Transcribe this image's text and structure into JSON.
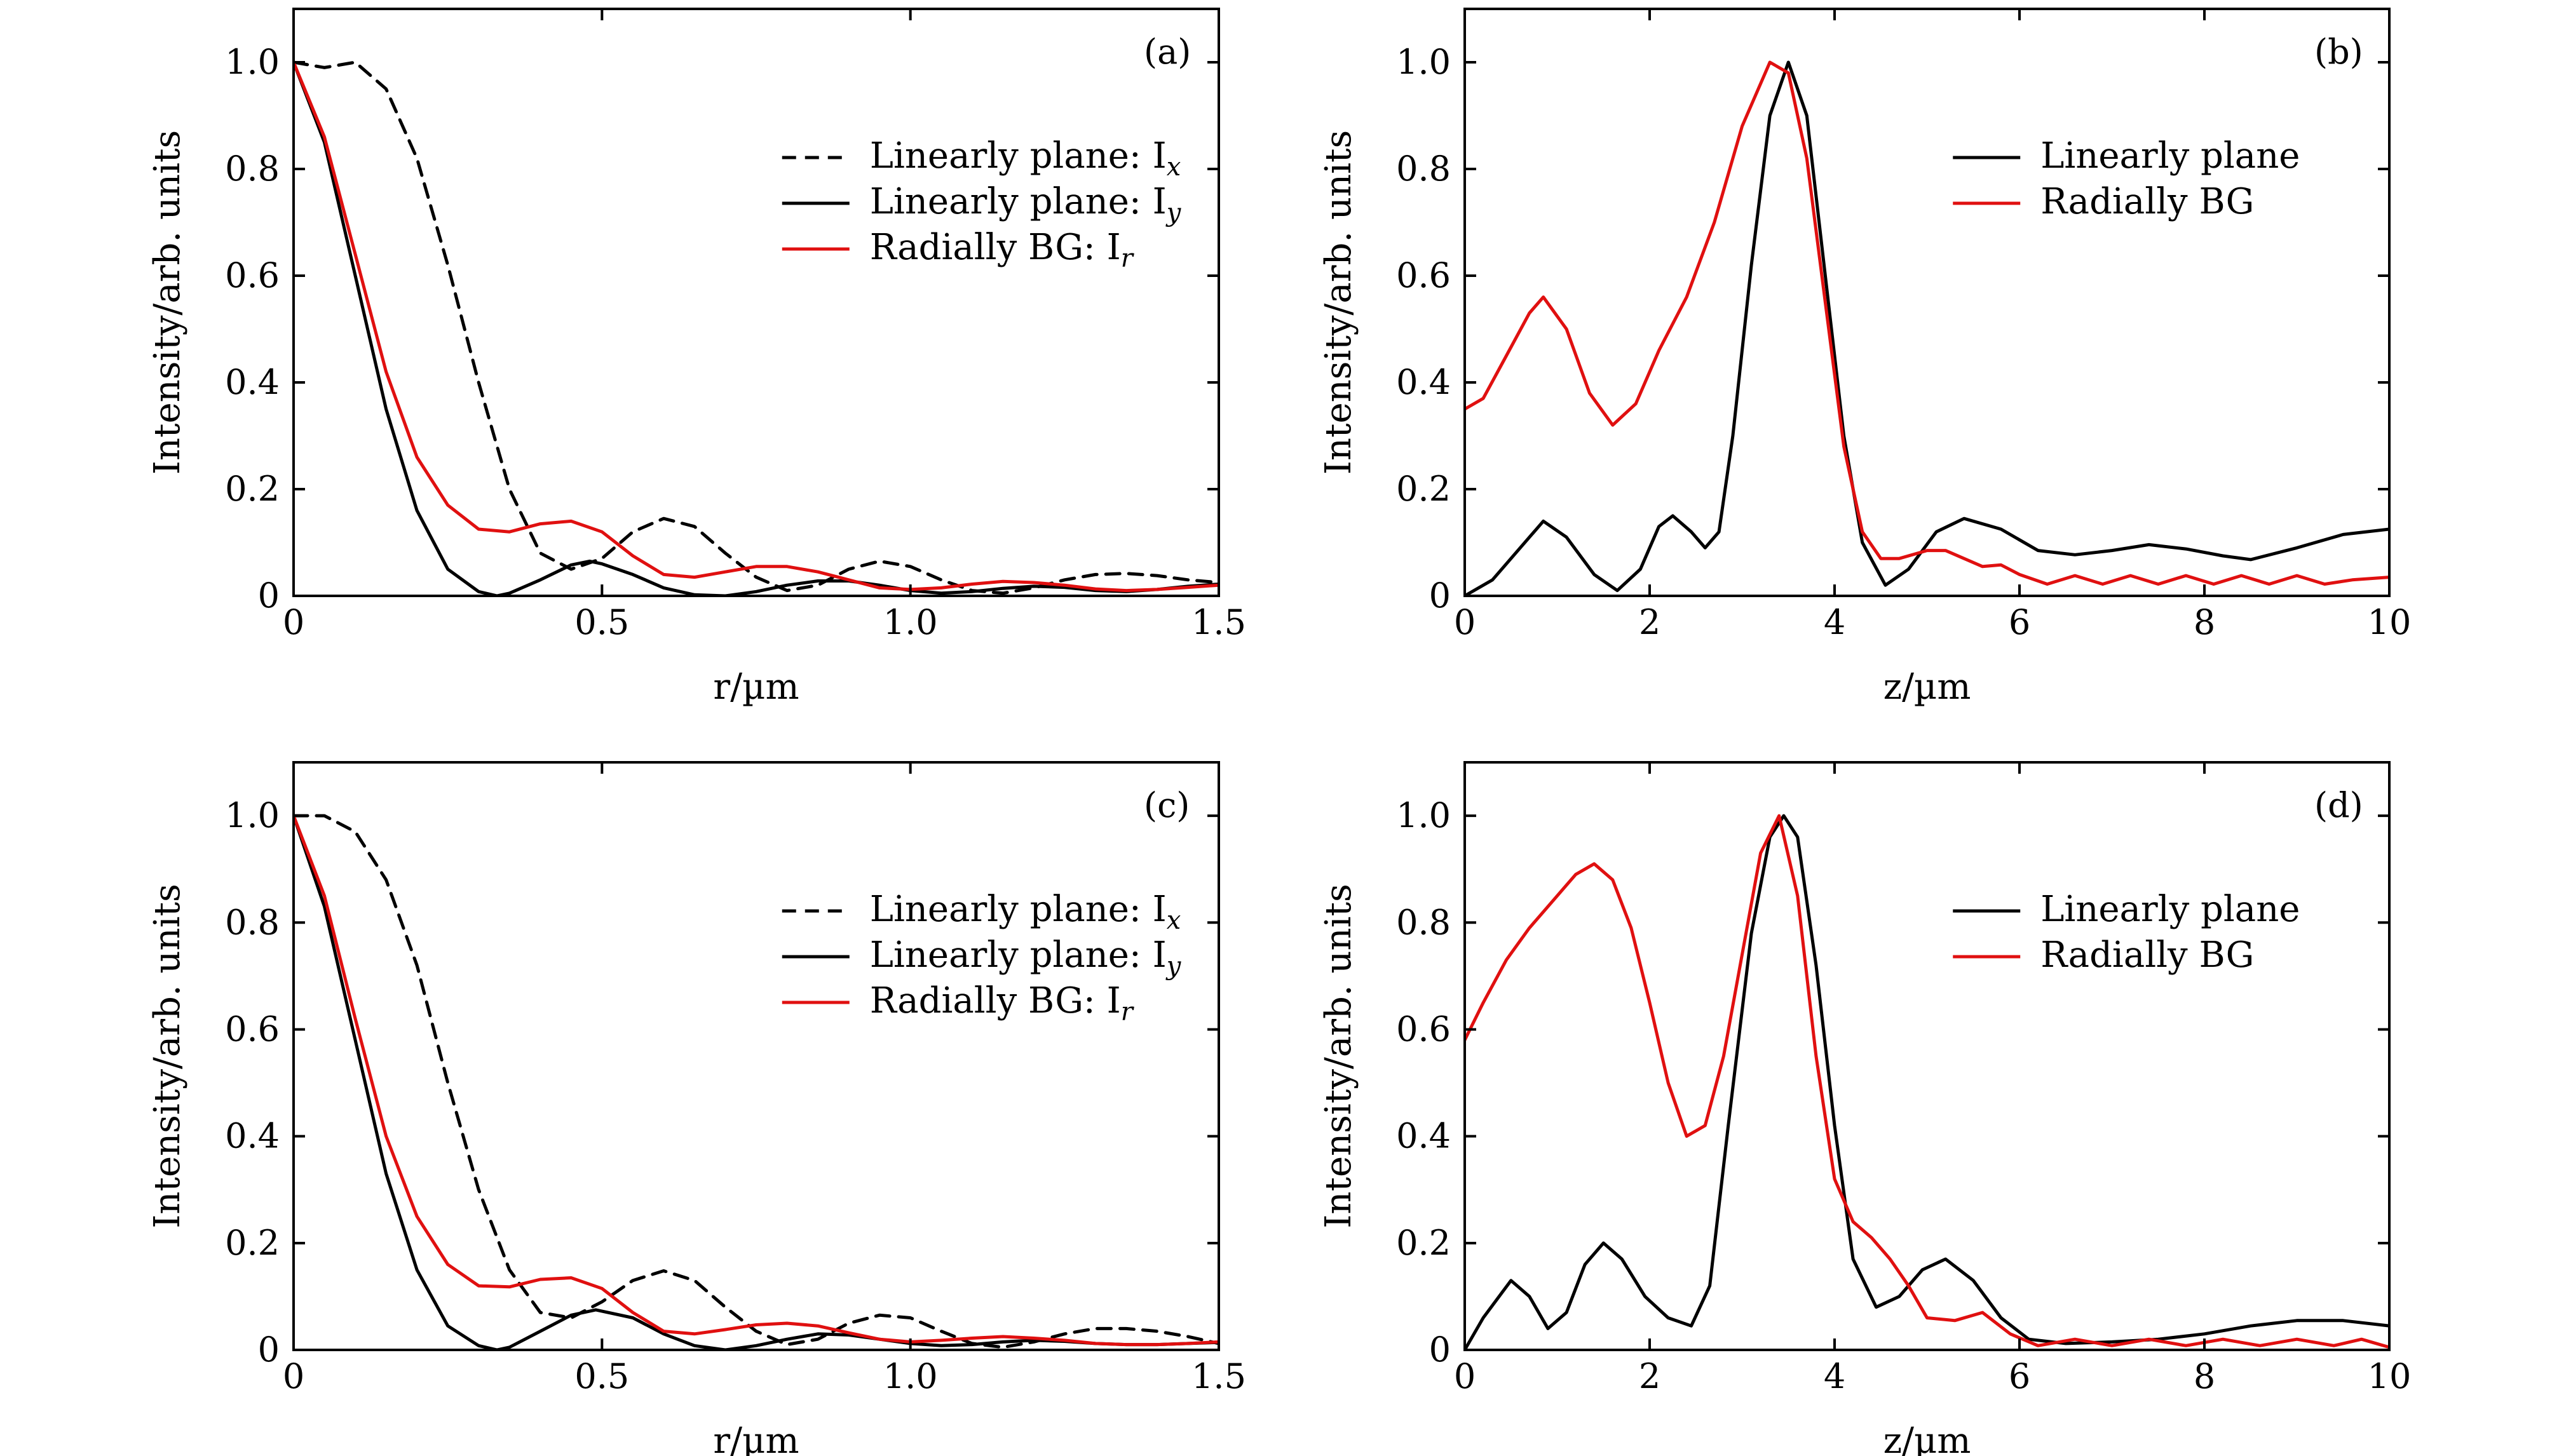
{
  "colors": {
    "black": "#000000",
    "red": "#e01010"
  },
  "chart_data": [
    {
      "type": "line",
      "panel_label": "(a)",
      "xlabel": "r/µm",
      "ylabel": "Intensity/arb. units",
      "xlim": [
        0,
        1.5
      ],
      "ylim": [
        0,
        1.1
      ],
      "xticks": [
        0,
        0.5,
        1.0,
        1.5
      ],
      "xtick_labels": [
        "0",
        "0.5",
        "1.0",
        "1.5"
      ],
      "yticks": [
        0,
        0.2,
        0.4,
        0.6,
        0.8,
        1.0
      ],
      "ytick_labels": [
        "0",
        "0.2",
        "0.4",
        "0.6",
        "0.8",
        "1.0"
      ],
      "grid": false,
      "legend_position": "upper-right",
      "series": [
        {
          "name": "Linearly plane: I",
          "subscript": "x",
          "color": "#000000",
          "dash": "dashed",
          "x": [
            0,
            0.05,
            0.1,
            0.15,
            0.2,
            0.25,
            0.3,
            0.35,
            0.4,
            0.45,
            0.5,
            0.55,
            0.6,
            0.65,
            0.7,
            0.75,
            0.8,
            0.85,
            0.9,
            0.95,
            1.0,
            1.05,
            1.1,
            1.15,
            1.2,
            1.25,
            1.3,
            1.35,
            1.4,
            1.45,
            1.5
          ],
          "y": [
            1.0,
            0.99,
            1.0,
            0.95,
            0.82,
            0.62,
            0.4,
            0.2,
            0.08,
            0.05,
            0.07,
            0.12,
            0.145,
            0.13,
            0.08,
            0.035,
            0.01,
            0.02,
            0.05,
            0.065,
            0.055,
            0.03,
            0.01,
            0.005,
            0.015,
            0.03,
            0.04,
            0.042,
            0.038,
            0.03,
            0.025
          ]
        },
        {
          "name": "Linearly plane: I",
          "subscript": "y",
          "color": "#000000",
          "dash": "solid",
          "x": [
            0,
            0.05,
            0.1,
            0.15,
            0.2,
            0.25,
            0.3,
            0.33,
            0.35,
            0.4,
            0.45,
            0.48,
            0.5,
            0.55,
            0.6,
            0.65,
            0.7,
            0.75,
            0.8,
            0.85,
            0.9,
            0.95,
            1.0,
            1.05,
            1.1,
            1.15,
            1.2,
            1.25,
            1.3,
            1.35,
            1.4,
            1.45,
            1.5
          ],
          "y": [
            1.0,
            0.85,
            0.6,
            0.35,
            0.16,
            0.05,
            0.008,
            0.0,
            0.005,
            0.03,
            0.058,
            0.065,
            0.06,
            0.04,
            0.015,
            0.002,
            0.0,
            0.008,
            0.02,
            0.028,
            0.028,
            0.02,
            0.01,
            0.005,
            0.008,
            0.014,
            0.018,
            0.016,
            0.01,
            0.008,
            0.012,
            0.018,
            0.022
          ]
        },
        {
          "name": "Radially BG: I",
          "subscript": "r",
          "color": "#e01010",
          "dash": "solid",
          "x": [
            0,
            0.05,
            0.1,
            0.15,
            0.2,
            0.25,
            0.3,
            0.35,
            0.4,
            0.45,
            0.5,
            0.55,
            0.6,
            0.65,
            0.7,
            0.75,
            0.8,
            0.85,
            0.9,
            0.95,
            1.0,
            1.05,
            1.1,
            1.15,
            1.2,
            1.25,
            1.3,
            1.35,
            1.4,
            1.45,
            1.5
          ],
          "y": [
            1.0,
            0.86,
            0.64,
            0.42,
            0.26,
            0.17,
            0.125,
            0.12,
            0.135,
            0.14,
            0.12,
            0.075,
            0.04,
            0.035,
            0.045,
            0.055,
            0.055,
            0.045,
            0.03,
            0.015,
            0.012,
            0.015,
            0.022,
            0.027,
            0.025,
            0.02,
            0.013,
            0.01,
            0.012,
            0.016,
            0.02
          ]
        }
      ]
    },
    {
      "type": "line",
      "panel_label": "(b)",
      "xlabel": "z/µm",
      "ylabel": "Intensity/arb. units",
      "xlim": [
        0,
        10
      ],
      "ylim": [
        0,
        1.1
      ],
      "xticks": [
        0,
        2,
        4,
        6,
        8,
        10
      ],
      "xtick_labels": [
        "0",
        "2",
        "4",
        "6",
        "8",
        "10"
      ],
      "yticks": [
        0,
        0.2,
        0.4,
        0.6,
        0.8,
        1.0
      ],
      "ytick_labels": [
        "0",
        "0.2",
        "0.4",
        "0.6",
        "0.8",
        "1.0"
      ],
      "grid": false,
      "legend_position": "upper-right",
      "series": [
        {
          "name": "Linearly plane",
          "subscript": "",
          "color": "#000000",
          "dash": "solid",
          "x": [
            0,
            0.3,
            0.6,
            0.85,
            1.1,
            1.4,
            1.65,
            1.9,
            2.1,
            2.25,
            2.45,
            2.6,
            2.75,
            2.9,
            3.1,
            3.3,
            3.5,
            3.7,
            3.9,
            4.1,
            4.3,
            4.55,
            4.8,
            5.1,
            5.4,
            5.8,
            6.2,
            6.6,
            7.0,
            7.4,
            7.8,
            8.2,
            8.5,
            9.0,
            9.5,
            10.0
          ],
          "y": [
            0.0,
            0.03,
            0.09,
            0.14,
            0.11,
            0.04,
            0.01,
            0.05,
            0.13,
            0.15,
            0.12,
            0.09,
            0.12,
            0.3,
            0.62,
            0.9,
            1.0,
            0.9,
            0.6,
            0.3,
            0.1,
            0.02,
            0.05,
            0.12,
            0.145,
            0.125,
            0.085,
            0.077,
            0.085,
            0.096,
            0.088,
            0.075,
            0.068,
            0.09,
            0.115,
            0.125
          ]
        },
        {
          "name": "Radially BG",
          "subscript": "",
          "color": "#e01010",
          "dash": "solid",
          "x": [
            0,
            0.2,
            0.45,
            0.7,
            0.85,
            1.1,
            1.35,
            1.6,
            1.85,
            2.1,
            2.4,
            2.7,
            3.0,
            3.3,
            3.5,
            3.7,
            3.9,
            4.1,
            4.3,
            4.5,
            4.7,
            5.0,
            5.2,
            5.4,
            5.6,
            5.8,
            6.0,
            6.3,
            6.6,
            6.9,
            7.2,
            7.5,
            7.8,
            8.1,
            8.4,
            8.7,
            9.0,
            9.3,
            9.6,
            10.0
          ],
          "y": [
            0.35,
            0.37,
            0.45,
            0.53,
            0.56,
            0.5,
            0.38,
            0.32,
            0.36,
            0.46,
            0.56,
            0.7,
            0.88,
            1.0,
            0.98,
            0.82,
            0.55,
            0.28,
            0.12,
            0.07,
            0.07,
            0.085,
            0.085,
            0.07,
            0.055,
            0.058,
            0.04,
            0.022,
            0.038,
            0.022,
            0.038,
            0.022,
            0.038,
            0.022,
            0.038,
            0.022,
            0.038,
            0.022,
            0.03,
            0.035
          ]
        }
      ]
    },
    {
      "type": "line",
      "panel_label": "(c)",
      "xlabel": "r/µm",
      "ylabel": "Intensity/arb. units",
      "xlim": [
        0,
        1.5
      ],
      "ylim": [
        0,
        1.1
      ],
      "xticks": [
        0,
        0.5,
        1.0,
        1.5
      ],
      "xtick_labels": [
        "0",
        "0.5",
        "1.0",
        "1.5"
      ],
      "yticks": [
        0,
        0.2,
        0.4,
        0.6,
        0.8,
        1.0
      ],
      "ytick_labels": [
        "0",
        "0.2",
        "0.4",
        "0.6",
        "0.8",
        "1.0"
      ],
      "grid": false,
      "legend_position": "upper-right",
      "series": [
        {
          "name": "Linearly plane: I",
          "subscript": "x",
          "color": "#000000",
          "dash": "dashed",
          "x": [
            0,
            0.05,
            0.1,
            0.15,
            0.2,
            0.25,
            0.3,
            0.35,
            0.4,
            0.45,
            0.5,
            0.55,
            0.6,
            0.65,
            0.7,
            0.75,
            0.8,
            0.85,
            0.9,
            0.95,
            1.0,
            1.05,
            1.1,
            1.15,
            1.2,
            1.25,
            1.3,
            1.35,
            1.4,
            1.45,
            1.5
          ],
          "y": [
            1.0,
            1.0,
            0.97,
            0.88,
            0.72,
            0.5,
            0.3,
            0.15,
            0.07,
            0.06,
            0.09,
            0.13,
            0.148,
            0.13,
            0.08,
            0.035,
            0.01,
            0.02,
            0.05,
            0.065,
            0.06,
            0.035,
            0.012,
            0.005,
            0.015,
            0.03,
            0.04,
            0.04,
            0.035,
            0.025,
            0.012
          ]
        },
        {
          "name": "Linearly plane: I",
          "subscript": "y",
          "color": "#000000",
          "dash": "solid",
          "x": [
            0,
            0.05,
            0.1,
            0.15,
            0.2,
            0.25,
            0.3,
            0.33,
            0.35,
            0.4,
            0.45,
            0.49,
            0.55,
            0.6,
            0.65,
            0.7,
            0.75,
            0.8,
            0.85,
            0.9,
            0.95,
            1.0,
            1.05,
            1.1,
            1.15,
            1.2,
            1.25,
            1.3,
            1.35,
            1.4,
            1.45,
            1.5
          ],
          "y": [
            1.0,
            0.83,
            0.58,
            0.33,
            0.15,
            0.045,
            0.008,
            0.0,
            0.005,
            0.035,
            0.065,
            0.075,
            0.06,
            0.03,
            0.008,
            0.0,
            0.008,
            0.02,
            0.03,
            0.028,
            0.02,
            0.012,
            0.008,
            0.01,
            0.015,
            0.018,
            0.016,
            0.012,
            0.01,
            0.01,
            0.012,
            0.014
          ]
        },
        {
          "name": "Radially BG: I",
          "subscript": "r",
          "color": "#e01010",
          "dash": "solid",
          "x": [
            0,
            0.05,
            0.1,
            0.15,
            0.2,
            0.25,
            0.3,
            0.35,
            0.4,
            0.45,
            0.5,
            0.55,
            0.6,
            0.65,
            0.7,
            0.75,
            0.8,
            0.85,
            0.9,
            0.95,
            1.0,
            1.05,
            1.1,
            1.15,
            1.2,
            1.25,
            1.3,
            1.35,
            1.4,
            1.45,
            1.5
          ],
          "y": [
            1.0,
            0.85,
            0.62,
            0.4,
            0.25,
            0.16,
            0.12,
            0.118,
            0.132,
            0.135,
            0.115,
            0.07,
            0.035,
            0.03,
            0.038,
            0.047,
            0.05,
            0.045,
            0.032,
            0.02,
            0.015,
            0.018,
            0.022,
            0.025,
            0.022,
            0.018,
            0.012,
            0.01,
            0.01,
            0.012,
            0.015
          ]
        }
      ]
    },
    {
      "type": "line",
      "panel_label": "(d)",
      "xlabel": "z/µm",
      "ylabel": "Intensity/arb. units",
      "xlim": [
        0,
        10
      ],
      "ylim": [
        0,
        1.1
      ],
      "xticks": [
        0,
        2,
        4,
        6,
        8,
        10
      ],
      "xtick_labels": [
        "0",
        "2",
        "4",
        "6",
        "8",
        "10"
      ],
      "yticks": [
        0,
        0.2,
        0.4,
        0.6,
        0.8,
        1.0
      ],
      "ytick_labels": [
        "0",
        "0.2",
        "0.4",
        "0.6",
        "0.8",
        "1.0"
      ],
      "grid": false,
      "legend_position": "upper-right",
      "series": [
        {
          "name": "Linearly plane",
          "subscript": "",
          "color": "#000000",
          "dash": "solid",
          "x": [
            0,
            0.2,
            0.5,
            0.7,
            0.9,
            1.1,
            1.3,
            1.5,
            1.7,
            1.95,
            2.2,
            2.45,
            2.65,
            2.85,
            3.1,
            3.3,
            3.45,
            3.6,
            3.8,
            4.0,
            4.2,
            4.45,
            4.7,
            4.95,
            5.2,
            5.5,
            5.8,
            6.1,
            6.5,
            7.0,
            7.5,
            8.0,
            8.5,
            9.0,
            9.5,
            10.0
          ],
          "y": [
            0.0,
            0.06,
            0.13,
            0.1,
            0.04,
            0.07,
            0.16,
            0.2,
            0.17,
            0.1,
            0.06,
            0.045,
            0.12,
            0.42,
            0.78,
            0.96,
            1.0,
            0.96,
            0.72,
            0.42,
            0.17,
            0.08,
            0.1,
            0.15,
            0.17,
            0.13,
            0.06,
            0.02,
            0.012,
            0.015,
            0.02,
            0.03,
            0.045,
            0.055,
            0.055,
            0.045
          ]
        },
        {
          "name": "Radially BG",
          "subscript": "",
          "color": "#e01010",
          "dash": "solid",
          "x": [
            0,
            0.2,
            0.45,
            0.7,
            1.0,
            1.2,
            1.4,
            1.6,
            1.8,
            2.0,
            2.2,
            2.4,
            2.6,
            2.8,
            3.0,
            3.2,
            3.4,
            3.6,
            3.8,
            4.0,
            4.2,
            4.4,
            4.6,
            4.8,
            5.0,
            5.3,
            5.6,
            5.9,
            6.2,
            6.6,
            7.0,
            7.4,
            7.8,
            8.2,
            8.6,
            9.0,
            9.4,
            9.7,
            10.0
          ],
          "y": [
            0.58,
            0.65,
            0.73,
            0.79,
            0.85,
            0.89,
            0.91,
            0.88,
            0.79,
            0.65,
            0.5,
            0.4,
            0.42,
            0.55,
            0.74,
            0.93,
            1.0,
            0.85,
            0.55,
            0.32,
            0.24,
            0.21,
            0.17,
            0.12,
            0.06,
            0.055,
            0.07,
            0.03,
            0.008,
            0.02,
            0.008,
            0.02,
            0.008,
            0.02,
            0.008,
            0.02,
            0.008,
            0.02,
            0.005
          ]
        }
      ]
    }
  ]
}
